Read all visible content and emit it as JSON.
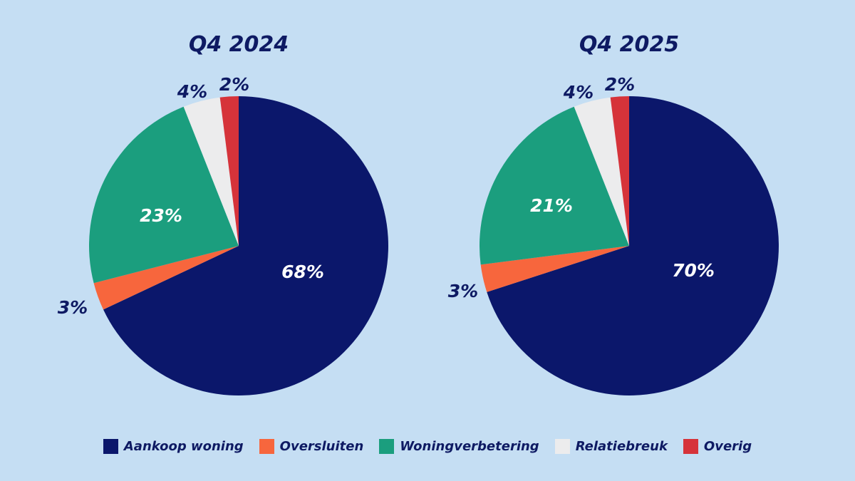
{
  "chart_data": [
    {
      "type": "pie",
      "title": "Q4 2024",
      "categories": [
        "Aankoop woning",
        "Oversluiten",
        "Woningverbetering",
        "Relatiebreuk",
        "Overig"
      ],
      "values": [
        68,
        3,
        23,
        4,
        2
      ],
      "labels": [
        "68%",
        "3%",
        "23%",
        "4%",
        "2%"
      ]
    },
    {
      "type": "pie",
      "title": "Q4 2025",
      "categories": [
        "Aankoop woning",
        "Oversluiten",
        "Woningverbetering",
        "Relatiebreuk",
        "Overig"
      ],
      "values": [
        70,
        3,
        21,
        4,
        2
      ],
      "labels": [
        "70%",
        "3%",
        "21%",
        "4%",
        "2%"
      ]
    }
  ],
  "legend": [
    {
      "label": "Aankoop woning",
      "color": "#0b176b"
    },
    {
      "label": "Oversluiten",
      "color": "#f7663d"
    },
    {
      "label": "Woningverbetering",
      "color": "#1b9e7e"
    },
    {
      "label": "Relatiebreuk",
      "color": "#ececed"
    },
    {
      "label": "Overig",
      "color": "#d6333a"
    }
  ]
}
